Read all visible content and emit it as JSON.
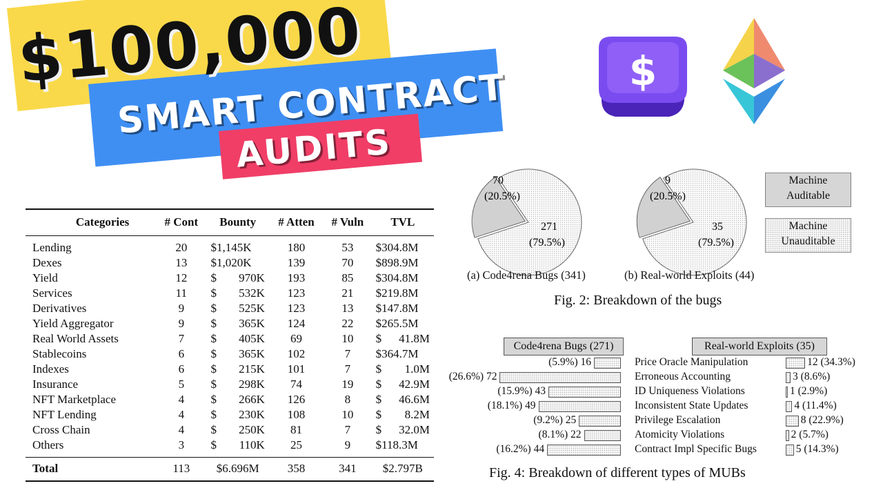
{
  "title": {
    "price": "$100,000",
    "line1": "SMART CONTRACT",
    "line2": "AUDITS"
  },
  "logos": {
    "keycap_icon": "dollar-keycap-icon",
    "eth_icon": "ethereum-icon",
    "keycap_symbol": "$"
  },
  "colors": {
    "yellow": "#f9d94a",
    "blue": "#3f8ff3",
    "red": "#f03e67",
    "purple": "#6b3fe0"
  },
  "table": {
    "headers": [
      "Categories",
      "# Cont",
      "Bounty",
      "# Atten",
      "# Vuln",
      "TVL"
    ],
    "rows": [
      {
        "cat": "Lending",
        "cont": "20",
        "bounty_sym": "$1,145K",
        "bounty_val": "",
        "atten": "180",
        "vuln": "53",
        "tvl_sym": "$304.8M",
        "tvl_val": ""
      },
      {
        "cat": "Dexes",
        "cont": "13",
        "bounty_sym": "$1,020K",
        "bounty_val": "",
        "atten": "139",
        "vuln": "70",
        "tvl_sym": "$898.9M",
        "tvl_val": ""
      },
      {
        "cat": "Yield",
        "cont": "12",
        "bounty_sym": "$",
        "bounty_val": "970K",
        "atten": "193",
        "vuln": "85",
        "tvl_sym": "$304.8M",
        "tvl_val": ""
      },
      {
        "cat": "Services",
        "cont": "11",
        "bounty_sym": "$",
        "bounty_val": "532K",
        "atten": "123",
        "vuln": "21",
        "tvl_sym": "$219.8M",
        "tvl_val": ""
      },
      {
        "cat": "Derivatives",
        "cont": "9",
        "bounty_sym": "$",
        "bounty_val": "525K",
        "atten": "123",
        "vuln": "13",
        "tvl_sym": "$147.8M",
        "tvl_val": ""
      },
      {
        "cat": "Yield Aggregator",
        "cont": "9",
        "bounty_sym": "$",
        "bounty_val": "365K",
        "atten": "124",
        "vuln": "22",
        "tvl_sym": "$265.5M",
        "tvl_val": ""
      },
      {
        "cat": "Real World Assets",
        "cont": "7",
        "bounty_sym": "$",
        "bounty_val": "405K",
        "atten": "69",
        "vuln": "10",
        "tvl_sym": "$",
        "tvl_val": "41.8M"
      },
      {
        "cat": "Stablecoins",
        "cont": "6",
        "bounty_sym": "$",
        "bounty_val": "365K",
        "atten": "102",
        "vuln": "7",
        "tvl_sym": "$364.7M",
        "tvl_val": ""
      },
      {
        "cat": "Indexes",
        "cont": "6",
        "bounty_sym": "$",
        "bounty_val": "215K",
        "atten": "101",
        "vuln": "7",
        "tvl_sym": "$",
        "tvl_val": "1.0M"
      },
      {
        "cat": "Insurance",
        "cont": "5",
        "bounty_sym": "$",
        "bounty_val": "298K",
        "atten": "74",
        "vuln": "19",
        "tvl_sym": "$",
        "tvl_val": "42.9M"
      },
      {
        "cat": "NFT Marketplace",
        "cont": "4",
        "bounty_sym": "$",
        "bounty_val": "266K",
        "atten": "126",
        "vuln": "8",
        "tvl_sym": "$",
        "tvl_val": "46.6M"
      },
      {
        "cat": "NFT Lending",
        "cont": "4",
        "bounty_sym": "$",
        "bounty_val": "230K",
        "atten": "108",
        "vuln": "10",
        "tvl_sym": "$",
        "tvl_val": "8.2M"
      },
      {
        "cat": "Cross Chain",
        "cont": "4",
        "bounty_sym": "$",
        "bounty_val": "250K",
        "atten": "81",
        "vuln": "7",
        "tvl_sym": "$",
        "tvl_val": "32.0M"
      },
      {
        "cat": "Others",
        "cont": "3",
        "bounty_sym": "$",
        "bounty_val": "110K",
        "atten": "25",
        "vuln": "9",
        "tvl_sym": "$118.3M",
        "tvl_val": ""
      }
    ],
    "total": {
      "cat": "Total",
      "cont": "113",
      "bounty": "$6.696M",
      "atten": "358",
      "vuln": "341",
      "tvl": "$2.797B"
    }
  },
  "fig2": {
    "pie_a": {
      "small_count": "70",
      "small_pct": "(20.5%)",
      "large_count": "271",
      "large_pct": "(79.5%)",
      "caption": "(a) Code4rena Bugs (341)",
      "small_fraction": 0.205
    },
    "pie_b": {
      "small_count": "9",
      "small_pct": "(20.5%)",
      "large_count": "35",
      "large_pct": "(79.5%)",
      "caption": "(b) Real-world Exploits (44)",
      "small_fraction": 0.205
    },
    "legend_auditable_1": "Machine",
    "legend_auditable_2": "Auditable",
    "legend_unauditable_1": "Machine",
    "legend_unauditable_2": "Unauditable",
    "caption": "Fig. 2: Breakdown of the bugs"
  },
  "fig4": {
    "left_header": "Code4rena Bugs (271)",
    "right_header": "Real-world Exploits (35)",
    "caption": "Fig. 4: Breakdown of different types of MUBs",
    "rows": [
      {
        "name": "Price Oracle Manipulation",
        "left_label": "(5.9%) 16",
        "left_pct": 5.9,
        "right_label": "12 (34.3%)",
        "right_pct": 34.3
      },
      {
        "name": "Erroneous Accounting",
        "left_label": "(26.6%) 72",
        "left_pct": 26.6,
        "right_label": "3 (8.6%)",
        "right_pct": 8.6
      },
      {
        "name": "ID Uniqueness Violations",
        "left_label": "(15.9%) 43",
        "left_pct": 15.9,
        "right_label": "1 (2.9%)",
        "right_pct": 2.9
      },
      {
        "name": "Inconsistent State Updates",
        "left_label": "(18.1%) 49",
        "left_pct": 18.1,
        "right_label": "4 (11.4%)",
        "right_pct": 11.4
      },
      {
        "name": "Privilege Escalation",
        "left_label": "(9.2%) 25",
        "left_pct": 9.2,
        "right_label": "8 (22.9%)",
        "right_pct": 22.9
      },
      {
        "name": "Atomicity Violations",
        "left_label": "(8.1%) 22",
        "left_pct": 8.1,
        "right_label": "2 (5.7%)",
        "right_pct": 5.7
      },
      {
        "name": "Contract Impl Specific Bugs",
        "left_label": "(16.2%) 44",
        "left_pct": 16.2,
        "right_label": "5 (14.3%)",
        "right_pct": 14.3
      }
    ]
  }
}
